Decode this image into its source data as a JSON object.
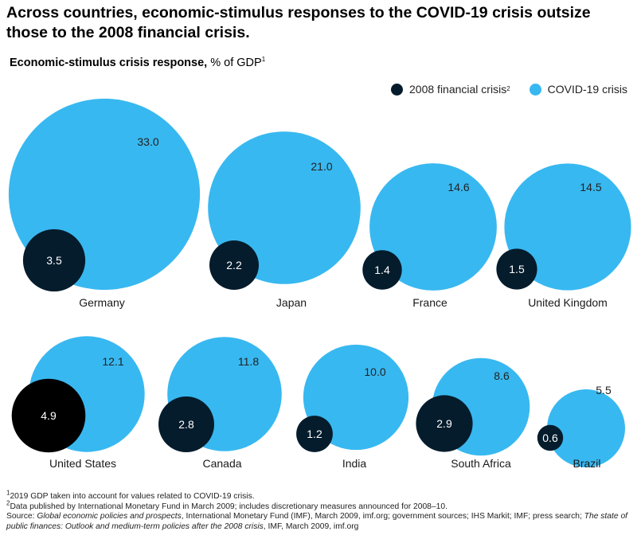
{
  "title": "Across countries, economic-stimulus responses to the COVID-19 crisis outsize those to the 2008 financial crisis.",
  "subtitle_bold": "Economic-stimulus crisis response,",
  "subtitle_unit": " % of GDP",
  "subtitle_sup": "1",
  "colors": {
    "covid": "#38b8f0",
    "financial": "#051c2c",
    "financial_us": "#000000",
    "label": "#1a1a1a"
  },
  "legend": [
    {
      "label": "2008 financial crisis",
      "sup": "2",
      "color": "#051c2c"
    },
    {
      "label": "COVID-19 crisis",
      "sup": "",
      "color": "#38b8f0"
    }
  ],
  "chart_data": {
    "type": "bubble",
    "title": "Economic-stimulus crisis response",
    "unit": "% of GDP",
    "series": [
      {
        "name": "2008 financial crisis",
        "values": [
          3.5,
          2.2,
          1.4,
          1.5,
          4.9,
          2.8,
          1.2,
          2.9,
          0.6
        ]
      },
      {
        "name": "COVID-19 crisis",
        "values": [
          33.0,
          21.0,
          14.6,
          14.5,
          12.1,
          11.8,
          10.0,
          8.6,
          5.5
        ]
      }
    ],
    "categories": [
      "Germany",
      "Japan",
      "France",
      "United Kingdom",
      "United States",
      "Canada",
      "India",
      "South Africa",
      "Brazil"
    ],
    "value_labels_financial": [
      "3.5",
      "2.2",
      "1.4",
      "1.5",
      "4.9",
      "2.8",
      "1.2",
      "2.9",
      "0.6"
    ],
    "value_labels_covid": [
      "33.0",
      "21.0",
      "14.6",
      "14.5",
      "12.1",
      "11.8",
      "10.0",
      "8.6",
      "5.5"
    ],
    "legend_position": "top-right"
  },
  "footnotes": {
    "note1_sup": "1",
    "note1": "2019 GDP taken into account for values related to COVID-19 crisis.",
    "note2_sup": "2",
    "note2": "Data published by International Monetary Fund in March 2009; includes discretionary measures announced for 2008–10.",
    "source_prefix": "Source: ",
    "source_italic1": "Global economic policies and prospects",
    "source_mid": ", International Monetary Fund (IMF), March 2009, imf.org; government sources; IHS Markit; IMF; press search; ",
    "source_italic2": "The state of public finances: Outlook and medium-term policies after the 2008 crisis",
    "source_end": ", IMF, March 2009, imf.org"
  }
}
